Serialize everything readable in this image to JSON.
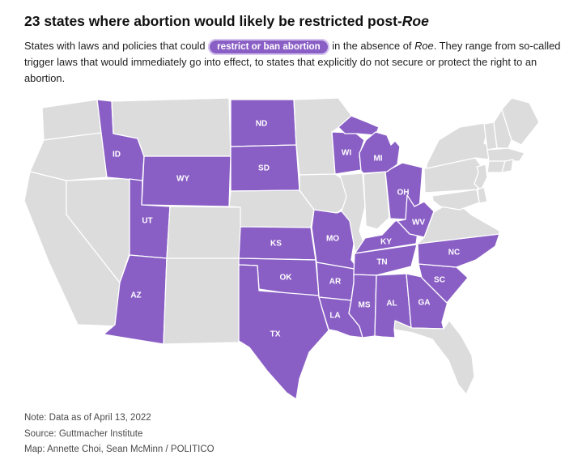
{
  "header": {
    "title_prefix": "23 states where abortion would likely be restricted post-",
    "title_italic": "Roe"
  },
  "subtitle": {
    "before_pill": "States with laws and policies that could ",
    "pill_label": "restrict or ban abortion",
    "after_pill": " in the absence of ",
    "italic_term": "Roe",
    "rest": ". They range from so-called trigger laws that would immediately go into effect, to states that explicitly do not secure or protect the right to an abortion."
  },
  "map": {
    "restricted_color": "#8a5fc5",
    "default_color": "#dcdcdc",
    "border_color": "#ffffff",
    "label_color": "#ffffff",
    "restricted_states": [
      "ID",
      "WY",
      "UT",
      "AZ",
      "ND",
      "SD",
      "KS",
      "OK",
      "TX",
      "MO",
      "AR",
      "LA",
      "WI",
      "MI",
      "OH",
      "KY",
      "WV",
      "TN",
      "NC",
      "SC",
      "GA",
      "AL",
      "MS"
    ]
  },
  "footer": {
    "note": "Note: Data as of April 13, 2022",
    "source": "Source: Guttmacher Institute",
    "credit": "Map: Annette Choi, Sean McMinn / POLITICO"
  }
}
